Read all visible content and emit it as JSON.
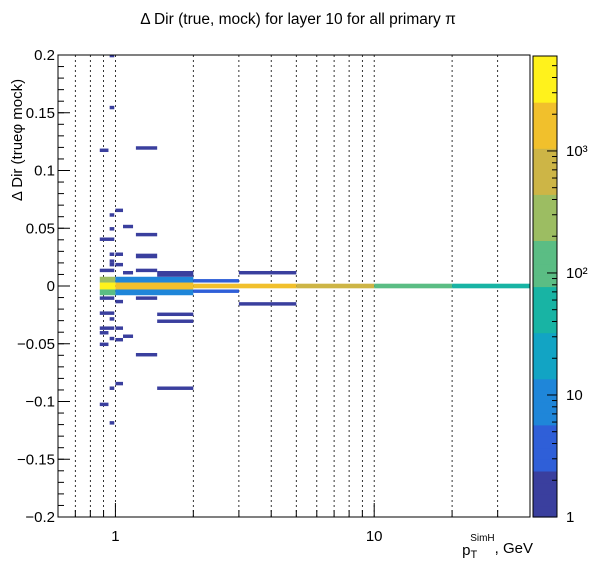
{
  "chart_data": {
    "type": "heatmap",
    "title": "Δ Dir (true, mock) for layer 10 for all primary π",
    "xlabel": {
      "base": "p",
      "sub": "T",
      "sup": "SimH",
      "suffix": ", GeV"
    },
    "ylabel": "Δ Dir (trueφ mock)",
    "x_scale": "log",
    "xlim": [
      0.6,
      40
    ],
    "ylim": [
      -0.2,
      0.2
    ],
    "x_tick_labels": [
      {
        "value": 1,
        "label": "1"
      },
      {
        "value": 10,
        "label": "10"
      }
    ],
    "y_tick_labels": [
      {
        "value": 0.2,
        "label": "0.2"
      },
      {
        "value": 0.15,
        "label": "0.15"
      },
      {
        "value": 0.1,
        "label": "0.1"
      },
      {
        "value": 0.05,
        "label": "0.05"
      },
      {
        "value": 0,
        "label": "0"
      },
      {
        "value": -0.05,
        "label": "−0.05"
      },
      {
        "value": -0.1,
        "label": "−0.1"
      },
      {
        "value": -0.15,
        "label": "−0.15"
      },
      {
        "value": -0.2,
        "label": "−0.2"
      }
    ],
    "x_grid": [
      0.6,
      0.7,
      0.8,
      0.9,
      1,
      2,
      3,
      4,
      5,
      6,
      7,
      8,
      9,
      10,
      20,
      30
    ],
    "colorbar": {
      "scale": "log",
      "range": [
        1,
        6000
      ],
      "tick_labels": [
        {
          "value": 1,
          "label": "1"
        },
        {
          "value": 10,
          "label": "10"
        },
        {
          "value": 100,
          "label": "10²"
        },
        {
          "value": 1000,
          "label": "10³"
        }
      ],
      "colors": [
        "#3a3f9e",
        "#2f5fd8",
        "#1f86d9",
        "#12a4c4",
        "#18b4a4",
        "#5bbd84",
        "#9cbd62",
        "#cdb546",
        "#f1c02c",
        "#fff21c"
      ]
    },
    "cells": [
      {
        "x": [
          0.87,
          1.0
        ],
        "y": [
          -0.003,
          0.003
        ],
        "count": 5500
      },
      {
        "x": [
          1.0,
          2.0
        ],
        "y": [
          -0.003,
          0.003
        ],
        "count": 2500
      },
      {
        "x": [
          2.0,
          5.0
        ],
        "y": [
          -0.002,
          0.002
        ],
        "count": 1600
      },
      {
        "x": [
          5.0,
          10.0
        ],
        "y": [
          -0.002,
          0.002
        ],
        "count": 500
      },
      {
        "x": [
          10.0,
          20.0
        ],
        "y": [
          -0.002,
          0.002
        ],
        "count": 130
      },
      {
        "x": [
          20.0,
          40.0
        ],
        "y": [
          -0.002,
          0.002
        ],
        "count": 40
      },
      {
        "x": [
          0.87,
          1.0
        ],
        "y": [
          0.003,
          0.008
        ],
        "count": 200
      },
      {
        "x": [
          0.87,
          1.0
        ],
        "y": [
          -0.008,
          -0.003
        ],
        "count": 150
      },
      {
        "x": [
          1.0,
          2.0
        ],
        "y": [
          0.003,
          0.008
        ],
        "count": 8
      },
      {
        "x": [
          1.0,
          2.0
        ],
        "y": [
          -0.008,
          -0.003
        ],
        "count": 8
      },
      {
        "x": [
          2.0,
          3.0
        ],
        "y": [
          0.003,
          0.006
        ],
        "count": 3
      },
      {
        "x": [
          2.0,
          3.0
        ],
        "y": [
          -0.006,
          -0.003
        ],
        "count": 3
      },
      {
        "x": [
          0.95,
          0.99
        ],
        "y": [
          0.198,
          0.201
        ],
        "count": 1
      },
      {
        "x": [
          0.95,
          0.99
        ],
        "y": [
          0.153,
          0.156
        ],
        "count": 1
      },
      {
        "x": [
          0.87,
          0.94
        ],
        "y": [
          0.116,
          0.119
        ],
        "count": 1
      },
      {
        "x": [
          1.2,
          1.45
        ],
        "y": [
          0.118,
          0.121
        ],
        "count": 1
      },
      {
        "x": [
          1.0,
          1.07
        ],
        "y": [
          0.064,
          0.067
        ],
        "count": 1
      },
      {
        "x": [
          0.95,
          0.99
        ],
        "y": [
          0.06,
          0.063
        ],
        "count": 1
      },
      {
        "x": [
          1.07,
          1.17
        ],
        "y": [
          0.05,
          0.053
        ],
        "count": 1
      },
      {
        "x": [
          0.95,
          0.99
        ],
        "y": [
          0.048,
          0.051
        ],
        "count": 1
      },
      {
        "x": [
          1.2,
          1.45
        ],
        "y": [
          0.043,
          0.046
        ],
        "count": 1
      },
      {
        "x": [
          0.87,
          0.99
        ],
        "y": [
          0.039,
          0.042
        ],
        "count": 1
      },
      {
        "x": [
          0.95,
          0.99
        ],
        "y": [
          0.026,
          0.029
        ],
        "count": 1
      },
      {
        "x": [
          0.95,
          0.99
        ],
        "y": [
          0.02,
          0.023
        ],
        "count": 1
      },
      {
        "x": [
          1.2,
          1.45
        ],
        "y": [
          0.024,
          0.028
        ],
        "count": 1
      },
      {
        "x": [
          1.0,
          1.07
        ],
        "y": [
          0.026,
          0.029
        ],
        "count": 1
      },
      {
        "x": [
          1.0,
          1.07
        ],
        "y": [
          0.017,
          0.02
        ],
        "count": 1
      },
      {
        "x": [
          0.87,
          0.99
        ],
        "y": [
          0.012,
          0.015
        ],
        "count": 1
      },
      {
        "x": [
          1.07,
          1.17
        ],
        "y": [
          0.01,
          0.013
        ],
        "count": 1
      },
      {
        "x": [
          1.2,
          1.45
        ],
        "y": [
          0.012,
          0.015
        ],
        "count": 2
      },
      {
        "x": [
          0.95,
          0.99
        ],
        "y": [
          0.017,
          0.02
        ],
        "count": 1
      },
      {
        "x": [
          1.45,
          2.0
        ],
        "y": [
          0.008,
          0.013
        ],
        "count": 2
      },
      {
        "x": [
          3.0,
          5.0
        ],
        "y": [
          0.01,
          0.013
        ],
        "count": 1
      },
      {
        "x": [
          0.87,
          0.99
        ],
        "y": [
          -0.012,
          -0.009
        ],
        "count": 2
      },
      {
        "x": [
          1.0,
          1.07
        ],
        "y": [
          -0.015,
          -0.012
        ],
        "count": 1
      },
      {
        "x": [
          1.2,
          1.45
        ],
        "y": [
          -0.012,
          -0.009
        ],
        "count": 1
      },
      {
        "x": [
          3.0,
          5.0
        ],
        "y": [
          -0.017,
          -0.014
        ],
        "count": 1
      },
      {
        "x": [
          0.87,
          0.99
        ],
        "y": [
          -0.025,
          -0.022
        ],
        "count": 1
      },
      {
        "x": [
          0.95,
          0.99
        ],
        "y": [
          -0.03,
          -0.027
        ],
        "count": 1
      },
      {
        "x": [
          1.45,
          2.0
        ],
        "y": [
          -0.026,
          -0.023
        ],
        "count": 1
      },
      {
        "x": [
          1.45,
          2.0
        ],
        "y": [
          -0.032,
          -0.029
        ],
        "count": 2
      },
      {
        "x": [
          0.87,
          0.99
        ],
        "y": [
          -0.038,
          -0.035
        ],
        "count": 1
      },
      {
        "x": [
          0.87,
          0.94
        ],
        "y": [
          -0.042,
          -0.039
        ],
        "count": 1
      },
      {
        "x": [
          1.0,
          1.07
        ],
        "y": [
          -0.038,
          -0.035
        ],
        "count": 1
      },
      {
        "x": [
          1.07,
          1.17
        ],
        "y": [
          -0.045,
          -0.042
        ],
        "count": 1
      },
      {
        "x": [
          0.95,
          0.99
        ],
        "y": [
          -0.047,
          -0.044
        ],
        "count": 1
      },
      {
        "x": [
          1.0,
          1.07
        ],
        "y": [
          -0.048,
          -0.045
        ],
        "count": 1
      },
      {
        "x": [
          0.87,
          0.94
        ],
        "y": [
          -0.052,
          -0.049
        ],
        "count": 1
      },
      {
        "x": [
          1.2,
          1.45
        ],
        "y": [
          -0.061,
          -0.058
        ],
        "count": 1
      },
      {
        "x": [
          1.0,
          1.07
        ],
        "y": [
          -0.086,
          -0.083
        ],
        "count": 1
      },
      {
        "x": [
          0.95,
          0.99
        ],
        "y": [
          -0.09,
          -0.087
        ],
        "count": 1
      },
      {
        "x": [
          1.45,
          2.0
        ],
        "y": [
          -0.09,
          -0.087
        ],
        "count": 1
      },
      {
        "x": [
          0.87,
          0.94
        ],
        "y": [
          -0.104,
          -0.101
        ],
        "count": 1
      },
      {
        "x": [
          0.95,
          0.99
        ],
        "y": [
          -0.12,
          -0.117
        ],
        "count": 1
      }
    ]
  }
}
